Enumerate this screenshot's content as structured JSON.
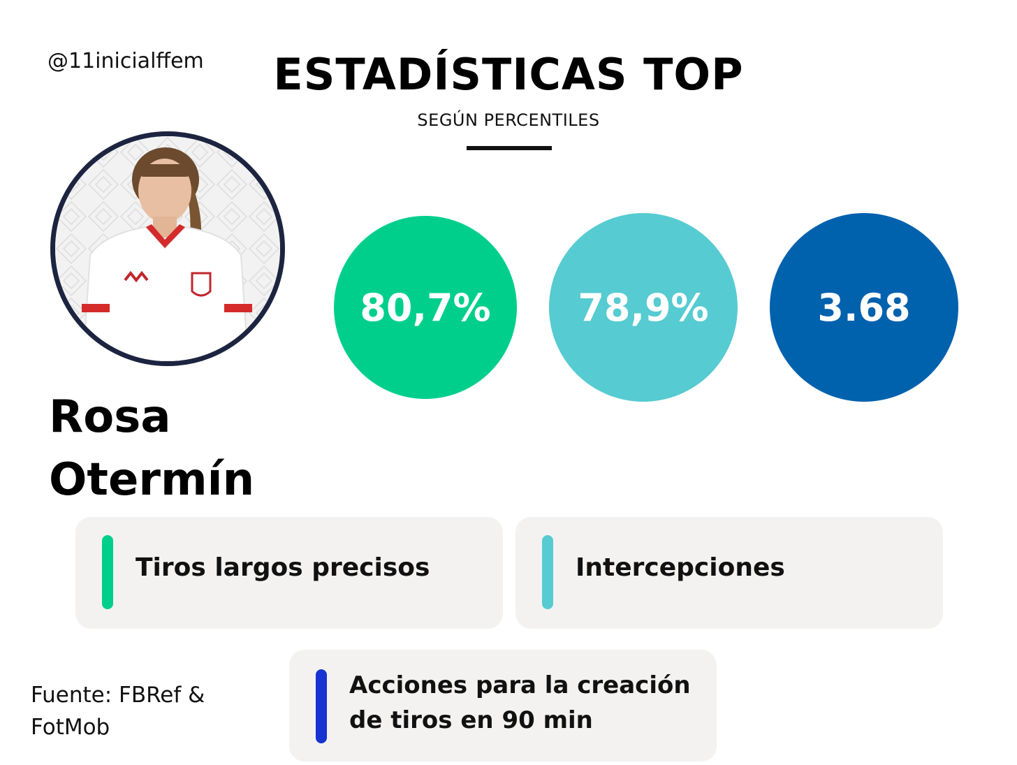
{
  "handle": "@11inicialffem",
  "title": "ESTADÍSTICAS TOP",
  "subtitle": "SEGÚN PERCENTILES",
  "player": {
    "first_name": "Rosa",
    "last_name": "Otermín"
  },
  "stats": [
    {
      "value": "80,7%",
      "label": "Tiros largos precisos",
      "color": "#00cf8b"
    },
    {
      "value": "78,9%",
      "label": "Intercepciones",
      "color": "#56cbd1"
    },
    {
      "value": "3.68",
      "label": "Acciones para la creación de tiros en 90 min",
      "color": "#0061ad",
      "bar_color": "#1733d1"
    }
  ],
  "source": "Fuente: FBRef & FotMob"
}
